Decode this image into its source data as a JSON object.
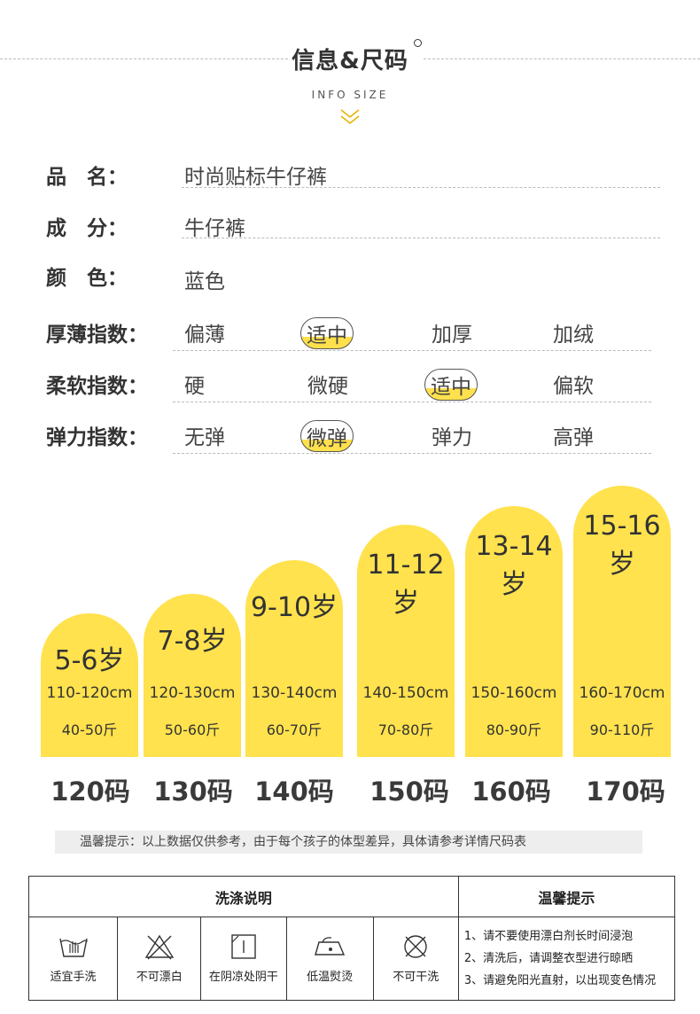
{
  "header": {
    "title": "信息&尺码",
    "subtitle": "INFO SIZE"
  },
  "info": {
    "name_label": "品　名：",
    "name_value": "时尚贴标牛仔裤",
    "material_label": "成　分：",
    "material_value": "牛仔裤",
    "color_label": "颜　色：",
    "color_value": "蓝色"
  },
  "indices": [
    {
      "label": "厚薄指数：",
      "options": [
        "偏薄",
        "适中",
        "加厚",
        "加绒"
      ],
      "selected": 1
    },
    {
      "label": "柔软指数：",
      "options": [
        "硬",
        "微硬",
        "适中",
        "偏软"
      ],
      "selected": 2
    },
    {
      "label": "弹力指数：",
      "options": [
        "无弹",
        "微弹",
        "弹力",
        "高弹"
      ],
      "selected": 1
    }
  ],
  "sizes": [
    {
      "age": "5-6岁",
      "height": "110-120cm",
      "weight": "40-50斤",
      "size": "120码"
    },
    {
      "age": "7-8岁",
      "height": "120-130cm",
      "weight": "50-60斤",
      "size": "130码"
    },
    {
      "age": "9-10岁",
      "height": "130-140cm",
      "weight": "60-70斤",
      "size": "140码"
    },
    {
      "age": "11-12岁",
      "height": "140-150cm",
      "weight": "70-80斤",
      "size": "150码"
    },
    {
      "age": "13-14岁",
      "height": "150-160cm",
      "weight": "80-90斤",
      "size": "160码"
    },
    {
      "age": "15-16岁",
      "height": "160-170cm",
      "weight": "90-110斤",
      "size": "170码"
    }
  ],
  "tip": "温馨提示：以上数据仅供参考，由于每个孩子的体型差异，具体请参考详情尺码表",
  "care": {
    "wash_title": "洗涤说明",
    "tips_title": "温馨提示",
    "items": [
      {
        "icon": "hand-wash-icon",
        "label": "适宜手洗"
      },
      {
        "icon": "no-bleach-icon",
        "label": "不可漂白"
      },
      {
        "icon": "shade-dry-icon",
        "label": "在阴凉处阴干"
      },
      {
        "icon": "low-iron-icon",
        "label": "低温熨烫"
      },
      {
        "icon": "no-dry-clean-icon",
        "label": "不可干洗"
      }
    ],
    "tips": [
      "1、请不要使用漂白剂长时间浸泡",
      "2、清洗后，请调整衣型进行晾晒",
      "3、请避免阳光直射，以出现变色情况"
    ]
  },
  "colors": {
    "accent": "#ffe24d"
  }
}
